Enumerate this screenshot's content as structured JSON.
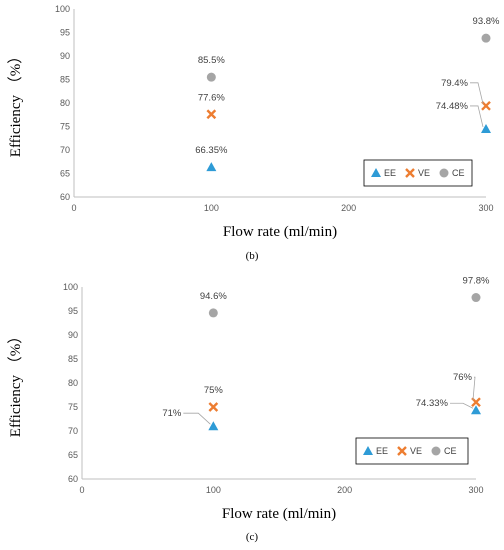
{
  "colors": {
    "EE": "#2e9bd6",
    "VE": "#ed7d31",
    "CE": "#a5a5a5"
  },
  "chart_data": [
    {
      "type": "scatter",
      "panel_label": "(b)",
      "xlabel": "Flow rate (ml/min)",
      "ylabel": "Efficiency （%）",
      "xlim": [
        0,
        300
      ],
      "ylim": [
        60,
        100
      ],
      "xticks": [
        0,
        100,
        200,
        300
      ],
      "yticks": [
        60,
        65,
        70,
        75,
        80,
        85,
        90,
        95,
        100
      ],
      "legend_position": "bottom-right",
      "series": [
        {
          "name": "EE",
          "marker": "triangle",
          "x": [
            100,
            300
          ],
          "y": [
            66.35,
            74.48
          ],
          "labels": [
            "66.35%",
            "74.48%"
          ]
        },
        {
          "name": "VE",
          "marker": "cross",
          "x": [
            100,
            300
          ],
          "y": [
            77.6,
            79.4
          ],
          "labels": [
            "77.6%",
            "79.4%"
          ]
        },
        {
          "name": "CE",
          "marker": "circle",
          "x": [
            100,
            300
          ],
          "y": [
            85.5,
            93.8
          ],
          "labels": [
            "85.5%",
            "93.8%"
          ]
        }
      ]
    },
    {
      "type": "scatter",
      "panel_label": "(c)",
      "xlabel": "Flow rate (ml/min)",
      "ylabel": "Efficiency （%）",
      "xlim": [
        0,
        300
      ],
      "ylim": [
        60,
        100
      ],
      "xticks": [
        0,
        100,
        200,
        300
      ],
      "yticks": [
        60,
        65,
        70,
        75,
        80,
        85,
        90,
        95,
        100
      ],
      "legend_position": "bottom-right",
      "series": [
        {
          "name": "EE",
          "marker": "triangle",
          "x": [
            100,
            300
          ],
          "y": [
            71,
            74.33
          ],
          "labels": [
            "71%",
            "74.33%"
          ]
        },
        {
          "name": "VE",
          "marker": "cross",
          "x": [
            100,
            300
          ],
          "y": [
            75,
            76
          ],
          "labels": [
            "75%",
            "76%"
          ]
        },
        {
          "name": "CE",
          "marker": "circle",
          "x": [
            100,
            300
          ],
          "y": [
            94.6,
            97.8
          ],
          "labels": [
            "94.6%",
            "97.8%"
          ]
        }
      ]
    }
  ]
}
